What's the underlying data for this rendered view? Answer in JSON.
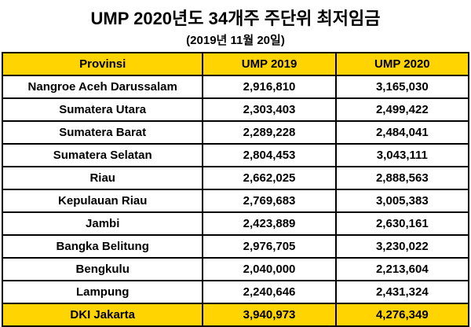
{
  "title": "UMP 2020년도 34개주 주단위 최저임금",
  "subtitle": "(2019년 11월 20일)",
  "colors": {
    "header_bg": "#FFD400",
    "highlight_row_bg": "#FFD400",
    "border": "#000000",
    "text": "#000000"
  },
  "chart_data": {
    "type": "table",
    "title": "UMP 2020년도 34개주 주단위 최저임금",
    "subtitle": "(2019년 11월 20일)",
    "columns": [
      "Provinsi",
      "UMP 2019",
      "UMP 2020"
    ],
    "rows": [
      {
        "province": "Nangroe Aceh Darussalam",
        "ump_2019": "2,916,810",
        "ump_2020": "3,165,030",
        "highlight": false
      },
      {
        "province": "Sumatera Utara",
        "ump_2019": "2,303,403",
        "ump_2020": "2,499,422",
        "highlight": false
      },
      {
        "province": "Sumatera Barat",
        "ump_2019": "2,289,228",
        "ump_2020": "2,484,041",
        "highlight": false
      },
      {
        "province": "Sumatera Selatan",
        "ump_2019": "2,804,453",
        "ump_2020": "3,043,111",
        "highlight": false
      },
      {
        "province": "Riau",
        "ump_2019": "2,662,025",
        "ump_2020": "2,888,563",
        "highlight": false
      },
      {
        "province": "Kepulauan Riau",
        "ump_2019": "2,769,683",
        "ump_2020": "3,005,383",
        "highlight": false
      },
      {
        "province": "Jambi",
        "ump_2019": "2,423,889",
        "ump_2020": "2,630,161",
        "highlight": false
      },
      {
        "province": "Bangka Belitung",
        "ump_2019": "2,976,705",
        "ump_2020": "3,230,022",
        "highlight": false
      },
      {
        "province": "Bengkulu",
        "ump_2019": "2,040,000",
        "ump_2020": "2,213,604",
        "highlight": false
      },
      {
        "province": "Lampung",
        "ump_2019": "2,240,646",
        "ump_2020": "2,431,324",
        "highlight": false
      },
      {
        "province": "DKI Jakarta",
        "ump_2019": "3,940,973",
        "ump_2020": "4,276,349",
        "highlight": true
      }
    ]
  }
}
